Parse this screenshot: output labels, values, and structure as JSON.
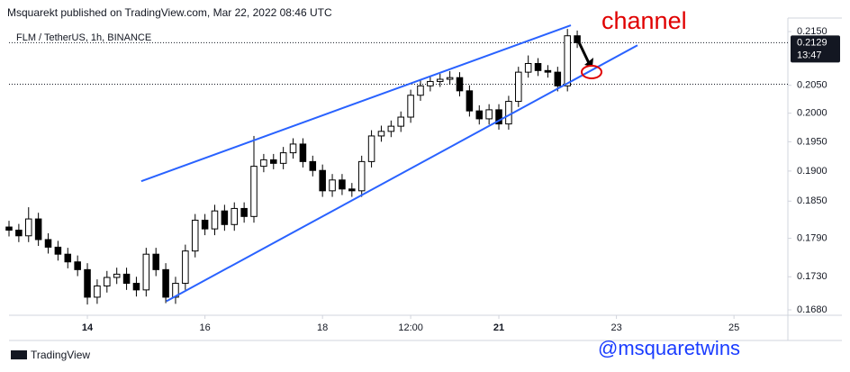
{
  "header": {
    "publisher": "Msquarekt published on TradingView.com, Mar 22, 2022 08:46 UTC",
    "brand": "TradingView"
  },
  "chart_data": {
    "type": "candlestick",
    "title": "FLM / TetherUS, 1h, BINANCE",
    "annotation": "channel",
    "watermark": "@msquaretwins",
    "log_scale": true,
    "up_color": "#ffffff",
    "down_color": "#000000",
    "line_color": "#2962ff",
    "xlim": [
      0,
      318
    ],
    "xticks": [
      {
        "value": 32,
        "label": "14"
      },
      {
        "value": 80,
        "label": "16"
      },
      {
        "value": 128,
        "label": "18"
      },
      {
        "value": 164,
        "label": "12:00"
      },
      {
        "value": 200,
        "label": "21"
      },
      {
        "value": 248,
        "label": "23"
      },
      {
        "value": 296,
        "label": "25"
      }
    ],
    "ylim": [
      0.1672,
      0.2176
    ],
    "yticks": [
      {
        "value": 0.215,
        "label": "0.2150"
      },
      {
        "value": 0.205,
        "label": "0.2050"
      },
      {
        "value": 0.2,
        "label": "0.2000"
      },
      {
        "value": 0.195,
        "label": "0.1950"
      },
      {
        "value": 0.19,
        "label": "0.1900"
      },
      {
        "value": 0.185,
        "label": "0.1850"
      },
      {
        "value": 0.179,
        "label": "0.1790"
      },
      {
        "value": 0.173,
        "label": "0.1730"
      },
      {
        "value": 0.168,
        "label": "0.1680"
      }
    ],
    "last_price": {
      "value": 0.2129,
      "label": "0.2129"
    },
    "countdown": "13:47",
    "horizontal_line": 0.2052,
    "trend_lines": [
      [
        [
          54,
          0.1883
        ],
        [
          229.4,
          0.2162
        ]
      ],
      [
        [
          64.3,
          0.1693
        ],
        [
          256.6,
          0.2124
        ]
      ]
    ],
    "x": [
      0,
      4,
      8,
      12,
      16,
      20,
      24,
      28,
      32,
      36,
      40,
      44,
      48,
      52,
      56,
      60,
      64,
      68,
      72,
      76,
      80,
      84,
      88,
      92,
      96,
      100,
      104,
      108,
      112,
      116,
      120,
      124,
      128,
      132,
      136,
      140,
      144,
      148,
      152,
      156,
      160,
      164,
      168,
      172,
      176,
      180,
      184,
      188,
      192,
      196,
      200,
      204,
      208,
      212,
      216,
      220,
      224,
      228,
      232
    ],
    "open": [
      0.1808,
      0.1803,
      0.1794,
      0.1821,
      0.1788,
      0.1776,
      0.1765,
      0.1753,
      0.1741,
      0.1699,
      0.1716,
      0.1729,
      0.1734,
      0.172,
      0.171,
      0.1765,
      0.1741,
      0.1699,
      0.172,
      0.177,
      0.1819,
      0.1805,
      0.1834,
      0.1812,
      0.1838,
      0.1825,
      0.1908,
      0.1919,
      0.1913,
      0.1931,
      0.1946,
      0.1916,
      0.1901,
      0.1867,
      0.1885,
      0.187,
      0.1867,
      0.1916,
      0.196,
      0.1968,
      0.1977,
      0.1993,
      0.2032,
      0.2049,
      0.2057,
      0.2061,
      0.2064,
      0.204,
      0.2004,
      0.199,
      0.2006,
      0.1981,
      0.2021,
      0.2074,
      0.209,
      0.2077,
      0.2074,
      0.2049,
      0.2142
    ],
    "high": [
      0.1818,
      0.1813,
      0.184,
      0.1831,
      0.1798,
      0.1786,
      0.1775,
      0.1763,
      0.1751,
      0.1726,
      0.1739,
      0.1744,
      0.1744,
      0.173,
      0.1775,
      0.1775,
      0.1751,
      0.173,
      0.178,
      0.1829,
      0.1829,
      0.1844,
      0.1844,
      0.1848,
      0.1848,
      0.196,
      0.1929,
      0.1929,
      0.1941,
      0.1956,
      0.1956,
      0.1926,
      0.1911,
      0.1895,
      0.1895,
      0.188,
      0.1926,
      0.197,
      0.1978,
      0.1987,
      0.2003,
      0.2042,
      0.2059,
      0.2067,
      0.2071,
      0.2076,
      0.2074,
      0.205,
      0.2014,
      0.2016,
      0.2016,
      0.2031,
      0.2084,
      0.2105,
      0.21,
      0.2087,
      0.2084,
      0.2155,
      0.2152
    ],
    "low": [
      0.1793,
      0.1784,
      0.1784,
      0.1778,
      0.1766,
      0.1755,
      0.1743,
      0.1731,
      0.1688,
      0.1689,
      0.1706,
      0.1719,
      0.171,
      0.17,
      0.17,
      0.1731,
      0.169,
      0.1689,
      0.171,
      0.176,
      0.1795,
      0.1795,
      0.1802,
      0.1802,
      0.1815,
      0.1815,
      0.1898,
      0.1903,
      0.1903,
      0.1921,
      0.1906,
      0.1891,
      0.1857,
      0.1857,
      0.186,
      0.1857,
      0.1857,
      0.1906,
      0.195,
      0.1958,
      0.1967,
      0.1983,
      0.2022,
      0.2039,
      0.2047,
      0.2051,
      0.203,
      0.1994,
      0.198,
      0.198,
      0.1971,
      0.1971,
      0.2011,
      0.2064,
      0.2067,
      0.2064,
      0.2039,
      0.2039,
      0.2119
    ],
    "close": [
      0.1803,
      0.1794,
      0.1821,
      0.1788,
      0.1776,
      0.1765,
      0.1753,
      0.1741,
      0.1699,
      0.1716,
      0.1729,
      0.1734,
      0.172,
      0.171,
      0.1765,
      0.1741,
      0.1699,
      0.172,
      0.177,
      0.1819,
      0.1805,
      0.1834,
      0.1812,
      0.1838,
      0.1825,
      0.1908,
      0.1919,
      0.1913,
      0.1931,
      0.1946,
      0.1916,
      0.1901,
      0.1867,
      0.1885,
      0.187,
      0.1867,
      0.1916,
      0.196,
      0.1968,
      0.1977,
      0.1993,
      0.2032,
      0.2049,
      0.2057,
      0.2061,
      0.2064,
      0.204,
      0.2004,
      0.199,
      0.2006,
      0.1981,
      0.2021,
      0.2074,
      0.209,
      0.2077,
      0.2074,
      0.2049,
      0.2142,
      0.2129
    ]
  }
}
